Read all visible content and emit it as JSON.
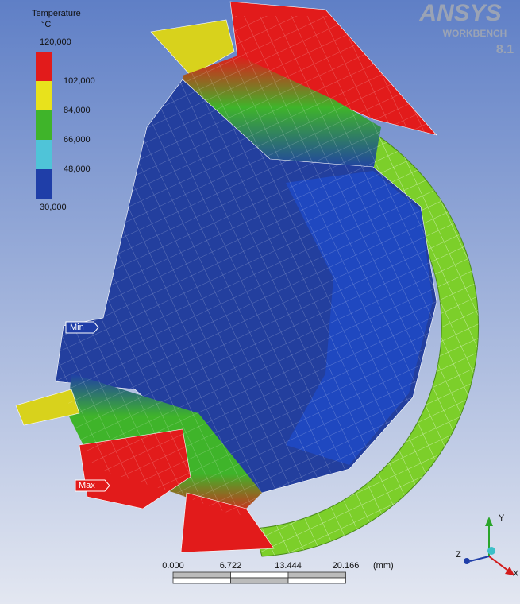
{
  "branding": {
    "product": "ANSYS",
    "edition": "WORKBENCH",
    "version": "8.1"
  },
  "legend": {
    "title": "Temperature",
    "unit": "°C",
    "levels": [
      "120,000",
      "102,000",
      "84,000",
      "66,000",
      "48,000",
      "30,000"
    ],
    "colors": [
      "#e21b1b",
      "#e8e21c",
      "#3fb42a",
      "#4fc4d8",
      "#1f3ea8"
    ]
  },
  "probes": {
    "min": "Min",
    "max": "Max"
  },
  "scale_bar": {
    "ticks": [
      "0.000",
      "6.722",
      "13.444",
      "20.166"
    ],
    "unit": "(mm)"
  },
  "triad": {
    "y": "Y",
    "z": "Z",
    "x": "X"
  }
}
